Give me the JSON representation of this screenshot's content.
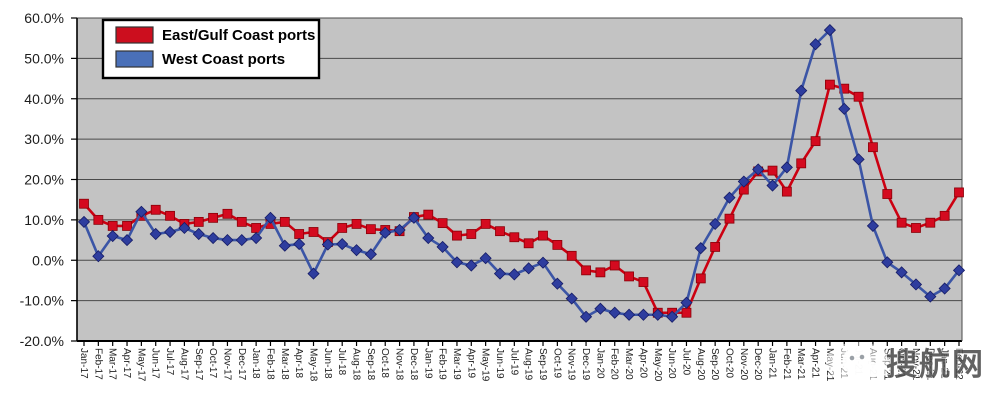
{
  "watermark": {
    "text": "搜航网",
    "icon": "wechat-bubble-icon",
    "text_color": "#4d4d4d",
    "halo_color": "#ffffff"
  },
  "chart_data": {
    "type": "line",
    "title": "",
    "xlabel": "",
    "ylabel": "",
    "ylim": [
      -20,
      60
    ],
    "ytick_step": 10,
    "ytick_labels": [
      "60.0%",
      "50.0%",
      "40.0%",
      "30.0%",
      "20.0%",
      "10.0%",
      "0.0%",
      "-10.0%",
      "-20.0%"
    ],
    "grid": true,
    "plot_bg": "#c3c3c3",
    "grid_color": "#4a4a4a",
    "axis_color": "#000000",
    "legend_position": "top-left",
    "categories": [
      "Jan-17",
      "Feb-17",
      "Mar-17",
      "Apr-17",
      "May-17",
      "Jun-17",
      "Jul-17",
      "Aug-17",
      "Sep-17",
      "Oct-17",
      "Nov-17",
      "Dec-17",
      "Jan-18",
      "Feb-18",
      "Mar-18",
      "Apr-18",
      "May-18",
      "Jun-18",
      "Jul-18",
      "Aug-18",
      "Sep-18",
      "Oct-18",
      "Nov-18",
      "Dec-18",
      "Jan-19",
      "Feb-19",
      "Mar-19",
      "Apr-19",
      "May-19",
      "Jun-19",
      "Jul-19",
      "Aug-19",
      "Sep-19",
      "Oct-19",
      "Nov-19",
      "Dec-19",
      "Jan-20",
      "Feb-20",
      "Mar-20",
      "Apr-20",
      "May-20",
      "Jun-20",
      "Jul-20",
      "Aug-20",
      "Sep-20",
      "Oct-20",
      "Nov-20",
      "Dec-20",
      "Jan-21",
      "Feb-21",
      "Mar-21",
      "Apr-21",
      "May-21",
      "Jun-21",
      "Jul-21",
      "Aug-21",
      "Sep-21",
      "Oct-21",
      "Nov-21",
      "Dec-21",
      "Jan-22",
      "Feb-22"
    ],
    "series": [
      {
        "name": "East/Gulf Coast ports",
        "marker": "square",
        "line_color": "#cc0011",
        "marker_color": "#d40a1f",
        "marker_edge": "#8a0008",
        "legend_swatch": "#cc0e1e",
        "values": [
          14,
          10,
          8.5,
          8.5,
          11,
          12.5,
          11,
          9,
          9.5,
          10.5,
          11.5,
          9.5,
          8,
          9,
          9.5,
          6.5,
          7,
          4.5,
          8,
          9,
          7.7,
          7.5,
          7.2,
          10.7,
          11.3,
          9.2,
          6.1,
          6.5,
          9,
          7.2,
          5.7,
          4.2,
          6.1,
          3.8,
          1.1,
          -2.5,
          -3,
          -1.3,
          -4,
          -5.4,
          -13,
          -13,
          -13,
          -4.5,
          3.3,
          10.3,
          17.5,
          22,
          22.2,
          17,
          24,
          29.5,
          43.5,
          42.5,
          40.5,
          28,
          16.4,
          9.3,
          8,
          9.3,
          11,
          16.8
        ]
      },
      {
        "name": "West Coast ports",
        "marker": "diamond",
        "line_color": "#3b55a6",
        "marker_color": "#2e3d9e",
        "marker_edge": "#161c66",
        "legend_swatch": "#4a70b8",
        "values": [
          9.5,
          1,
          6,
          5,
          12,
          6.5,
          7,
          8,
          6.5,
          5.5,
          5,
          5,
          5.5,
          10.5,
          3.6,
          4,
          -3.3,
          3.9,
          4,
          2.5,
          1.5,
          6.8,
          7.5,
          10.5,
          5.5,
          3.3,
          -0.5,
          -1.3,
          0.5,
          -3.3,
          -3.5,
          -2,
          -0.6,
          -5.8,
          -9.5,
          -14,
          -12,
          -13,
          -13.5,
          -13.5,
          -13.5,
          -14,
          -10.5,
          3,
          9,
          15.5,
          19.5,
          22.5,
          18.5,
          23,
          42,
          53.5,
          57,
          37.5,
          25,
          8.5,
          -0.5,
          -3,
          -6,
          -9,
          -7,
          -2.5
        ]
      }
    ]
  }
}
